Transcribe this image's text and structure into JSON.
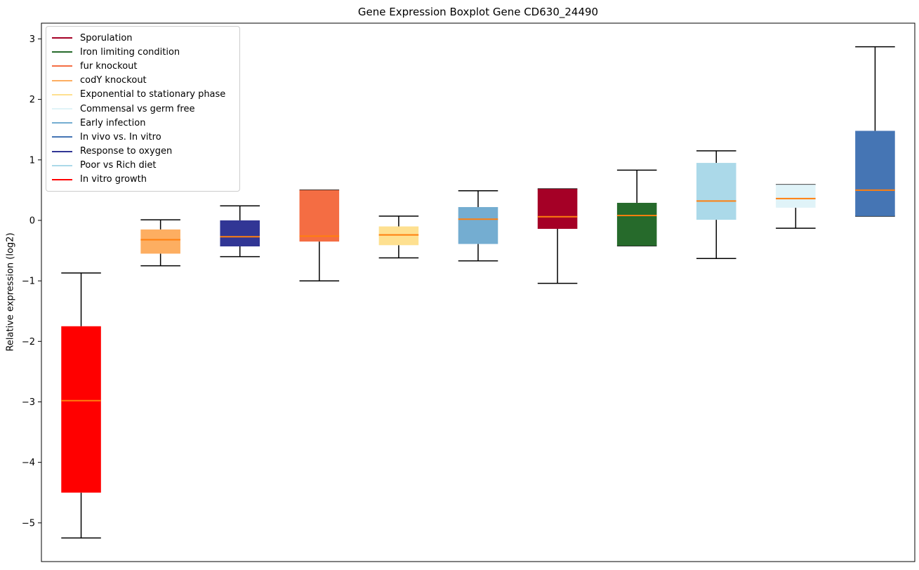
{
  "chart_data": {
    "type": "boxplot",
    "title": "Gene Expression Boxplot Gene CD630_24490",
    "xlabel": "",
    "ylabel": "Relative expression (log2)",
    "ylim": [
      -5.64,
      3.26
    ],
    "yticks": [
      3,
      2,
      1,
      0,
      -1,
      -2,
      -3,
      -4,
      -5
    ],
    "grid": false,
    "legend_position": "upper left",
    "median_color": "#ff7f0e",
    "whisker_color": "#000000",
    "legend": [
      {
        "label": "Sporulation",
        "color": "#a50026"
      },
      {
        "label": "Iron limiting condition",
        "color": "#266a2b"
      },
      {
        "label": "fur knockout",
        "color": "#f46d43"
      },
      {
        "label": "codY knockout",
        "color": "#fdae61"
      },
      {
        "label": "Exponential to stationary phase",
        "color": "#fee090"
      },
      {
        "label": "Commensal vs germ free",
        "color": "#e0f3f8"
      },
      {
        "label": "Early infection",
        "color": "#74add1"
      },
      {
        "label": "In vivo vs. In vitro",
        "color": "#4575b4"
      },
      {
        "label": "Response to oxygen",
        "color": "#313695"
      },
      {
        "label": "Poor vs Rich diet",
        "color": "#abd9e9"
      },
      {
        "label": "In vitro growth",
        "color": "#ff0000"
      }
    ],
    "boxes": [
      {
        "condition": "In vitro growth",
        "color": "#ff0000",
        "whisker_low": -5.25,
        "q1": -4.5,
        "median": -2.98,
        "q3": -1.75,
        "whisker_high": -0.87
      },
      {
        "condition": "codY knockout",
        "color": "#fdae61",
        "whisker_low": -0.75,
        "q1": -0.55,
        "median": -0.32,
        "q3": -0.15,
        "whisker_high": 0.01
      },
      {
        "condition": "Response to oxygen",
        "color": "#313695",
        "whisker_low": -0.6,
        "q1": -0.43,
        "median": -0.27,
        "q3": 0.0,
        "whisker_high": 0.24
      },
      {
        "condition": "fur knockout",
        "color": "#f46d43",
        "whisker_low": -1.0,
        "q1": -0.35,
        "median": -0.26,
        "q3": 0.5,
        "whisker_high": 0.5
      },
      {
        "condition": "Exponential to stationary phase",
        "color": "#fee090",
        "whisker_low": -0.62,
        "q1": -0.41,
        "median": -0.24,
        "q3": -0.1,
        "whisker_high": 0.07
      },
      {
        "condition": "Early infection",
        "color": "#74add1",
        "whisker_low": -0.67,
        "q1": -0.39,
        "median": 0.02,
        "q3": 0.22,
        "whisker_high": 0.49
      },
      {
        "condition": "Sporulation",
        "color": "#a50026",
        "whisker_low": -1.04,
        "q1": -0.14,
        "median": 0.06,
        "q3": 0.52,
        "whisker_high": 0.52
      },
      {
        "condition": "Iron limiting condition",
        "color": "#266a2b",
        "whisker_low": -0.42,
        "q1": -0.42,
        "median": 0.08,
        "q3": 0.29,
        "whisker_high": 0.83
      },
      {
        "condition": "Poor vs Rich diet",
        "color": "#abd9e9",
        "whisker_low": -0.63,
        "q1": 0.01,
        "median": 0.32,
        "q3": 0.95,
        "whisker_high": 1.15
      },
      {
        "condition": "Commensal vs germ free",
        "color": "#e0f3f8",
        "whisker_low": -0.13,
        "q1": 0.21,
        "median": 0.36,
        "q3": 0.59,
        "whisker_high": 0.59
      },
      {
        "condition": "In vivo vs. In vitro",
        "color": "#4575b4",
        "whisker_low": 0.07,
        "q1": 0.07,
        "median": 0.5,
        "q3": 1.48,
        "whisker_high": 2.87
      }
    ]
  }
}
